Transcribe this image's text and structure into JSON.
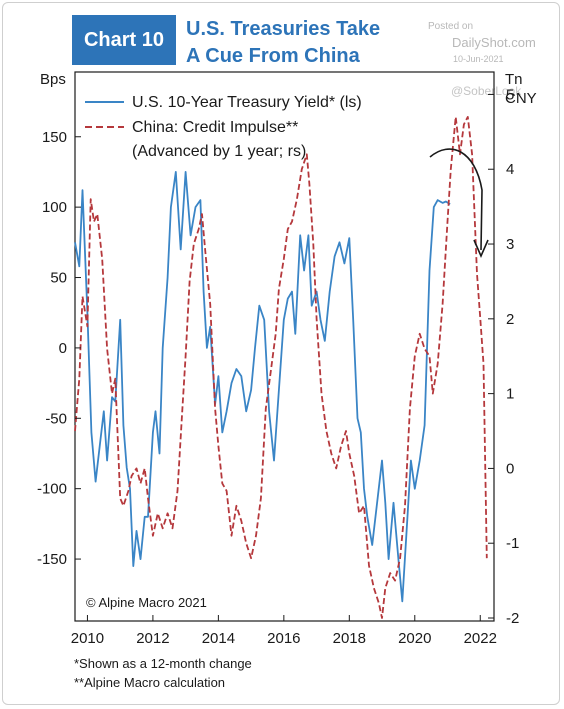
{
  "header": {
    "badge": "Chart 10",
    "title_line1": "U.S. Treasuries Take",
    "title_line2": "A Cue From China"
  },
  "watermark": {
    "posted_on": "Posted on",
    "site": "DailyShot.com",
    "date": "10-Jun-2021",
    "handle": "@SoberLook"
  },
  "axis_units": {
    "left": "Bps",
    "right_line1": "Tn",
    "right_line2": "CNY"
  },
  "footnotes": [
    "*Shown as a 12-month change",
    "**Alpine Macro calculation"
  ],
  "colors": {
    "series1": "#3a85c6",
    "series2": "#b5383c",
    "title": "#2d74b8"
  },
  "chart_data": {
    "type": "line",
    "source": "© Alpine Macro 2021",
    "x_ticks": [
      "2010",
      "2012",
      "2014",
      "2016",
      "2018",
      "2020",
      "2022"
    ],
    "xlim": [
      2009.62,
      2022.42
    ],
    "y_left": {
      "ticks": [
        150,
        100,
        50,
        0,
        -50,
        -100,
        -150
      ],
      "ylim": [
        -194,
        196
      ]
    },
    "y_right": {
      "ticks": [
        5,
        4,
        3,
        2,
        1,
        0,
        -1,
        -2
      ],
      "ylim": [
        -2.04,
        5.3
      ]
    },
    "legend_position": "top-left",
    "annotation": "curved arrow pointing down at the recent peak",
    "series": [
      {
        "name": "U.S. 10-Year Treasury Yield* (ls)",
        "axis": "left",
        "style": "solid",
        "x": [
          2009.62,
          2009.75,
          2009.85,
          2010.0,
          2010.12,
          2010.25,
          2010.4,
          2010.5,
          2010.6,
          2010.75,
          2010.85,
          2011.0,
          2011.1,
          2011.2,
          2011.3,
          2011.4,
          2011.5,
          2011.62,
          2011.75,
          2011.85,
          2012.0,
          2012.08,
          2012.2,
          2012.3,
          2012.45,
          2012.55,
          2012.7,
          2012.85,
          2013.0,
          2013.15,
          2013.3,
          2013.45,
          2013.55,
          2013.65,
          2013.75,
          2013.9,
          2014.0,
          2014.12,
          2014.25,
          2014.4,
          2014.55,
          2014.7,
          2014.85,
          2015.0,
          2015.12,
          2015.25,
          2015.4,
          2015.55,
          2015.7,
          2015.85,
          2016.0,
          2016.12,
          2016.25,
          2016.35,
          2016.5,
          2016.62,
          2016.75,
          2016.85,
          2017.0,
          2017.12,
          2017.25,
          2017.4,
          2017.55,
          2017.7,
          2017.85,
          2018.0,
          2018.12,
          2018.25,
          2018.35,
          2018.45,
          2018.55,
          2018.7,
          2018.85,
          2019.0,
          2019.1,
          2019.2,
          2019.35,
          2019.5,
          2019.62,
          2019.75,
          2019.88,
          2020.0,
          2020.15,
          2020.3,
          2020.45,
          2020.58,
          2020.7,
          2020.85,
          2020.95,
          2021.08
        ],
        "y": [
          75,
          58,
          112,
          25,
          -60,
          -95,
          -65,
          -45,
          -80,
          -35,
          -38,
          20,
          -55,
          -85,
          -100,
          -155,
          -130,
          -150,
          -120,
          -120,
          -60,
          -45,
          -75,
          0,
          50,
          100,
          125,
          70,
          125,
          80,
          100,
          105,
          40,
          0,
          15,
          -40,
          -20,
          -60,
          -45,
          -25,
          -15,
          -20,
          -45,
          -30,
          0,
          30,
          20,
          -45,
          -80,
          -30,
          20,
          35,
          40,
          10,
          80,
          55,
          80,
          30,
          40,
          20,
          5,
          40,
          65,
          75,
          60,
          78,
          20,
          -50,
          -60,
          -100,
          -120,
          -140,
          -110,
          -80,
          -110,
          -150,
          -110,
          -150,
          -180,
          -130,
          -80,
          -100,
          -80,
          -55,
          55,
          100,
          105,
          103,
          104,
          102
        ]
      },
      {
        "name": "China: Credit Impulse** (Advanced by 1 year; rs)",
        "axis": "right",
        "style": "dashed",
        "x": [
          2009.62,
          2009.75,
          2009.85,
          2010.0,
          2010.1,
          2010.2,
          2010.3,
          2010.45,
          2010.6,
          2010.75,
          2010.85,
          2011.0,
          2011.1,
          2011.25,
          2011.35,
          2011.5,
          2011.62,
          2011.75,
          2011.85,
          2012.0,
          2012.15,
          2012.3,
          2012.45,
          2012.6,
          2012.75,
          2012.9,
          2013.0,
          2013.12,
          2013.25,
          2013.4,
          2013.5,
          2013.6,
          2013.75,
          2013.9,
          2014.0,
          2014.12,
          2014.25,
          2014.4,
          2014.55,
          2014.7,
          2014.85,
          2015.0,
          2015.15,
          2015.3,
          2015.45,
          2015.6,
          2015.75,
          2015.85,
          2016.0,
          2016.12,
          2016.25,
          2016.4,
          2016.55,
          2016.7,
          2016.78,
          2016.9,
          2017.0,
          2017.15,
          2017.3,
          2017.45,
          2017.6,
          2017.75,
          2017.9,
          2018.0,
          2018.15,
          2018.3,
          2018.45,
          2018.6,
          2018.75,
          2018.9,
          2019.0,
          2019.1,
          2019.25,
          2019.4,
          2019.55,
          2019.7,
          2019.85,
          2020.0,
          2020.15,
          2020.3,
          2020.45,
          2020.55,
          2020.7,
          2020.85,
          2021.0,
          2021.1,
          2021.25,
          2021.38,
          2021.5,
          2021.62,
          2021.75,
          2021.9,
          2022.0,
          2022.1,
          2022.2
        ],
        "y": [
          0.5,
          1.2,
          2.3,
          1.9,
          3.6,
          3.3,
          3.4,
          2.8,
          1.6,
          1.0,
          1.2,
          -0.4,
          -0.5,
          -0.3,
          -0.1,
          0.0,
          -0.2,
          0.0,
          -0.4,
          -0.9,
          -0.6,
          -0.8,
          -0.6,
          -0.8,
          -0.3,
          0.8,
          1.5,
          2.5,
          3.0,
          3.2,
          3.4,
          2.9,
          2.2,
          0.8,
          0.3,
          -0.2,
          -0.3,
          -0.9,
          -0.5,
          -0.7,
          -1.0,
          -1.2,
          -0.9,
          -0.4,
          0.8,
          1.3,
          1.8,
          2.4,
          2.8,
          3.2,
          3.3,
          3.6,
          4.0,
          4.2,
          3.8,
          3.0,
          2.0,
          1.0,
          0.5,
          0.2,
          0.0,
          0.3,
          0.5,
          0.2,
          -0.1,
          -0.6,
          -0.5,
          -1.3,
          -1.6,
          -1.8,
          -2.0,
          -1.6,
          -1.4,
          -1.5,
          -1.2,
          -0.5,
          0.8,
          1.5,
          1.8,
          1.6,
          1.5,
          1.0,
          1.4,
          2.2,
          3.3,
          4.0,
          4.7,
          4.2,
          4.6,
          4.7,
          4.2,
          2.6,
          2.0,
          1.4,
          -1.2
        ]
      }
    ]
  }
}
